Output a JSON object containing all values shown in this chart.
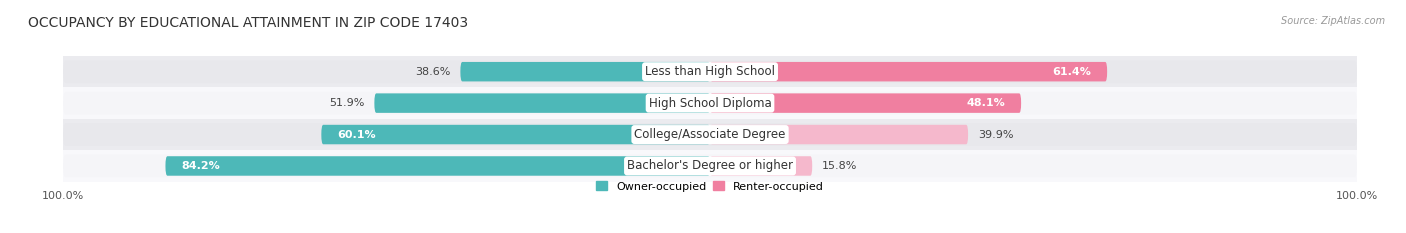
{
  "title": "OCCUPANCY BY EDUCATIONAL ATTAINMENT IN ZIP CODE 17403",
  "source": "Source: ZipAtlas.com",
  "categories": [
    "Less than High School",
    "High School Diploma",
    "College/Associate Degree",
    "Bachelor's Degree or higher"
  ],
  "owner_values": [
    38.6,
    51.9,
    60.1,
    84.2
  ],
  "renter_values": [
    61.4,
    48.1,
    39.9,
    15.8
  ],
  "owner_color": "#4db8b8",
  "renter_color": "#f07fa0",
  "renter_light_color": "#f5b8cc",
  "owner_label_inside_threshold": 55,
  "renter_label_inside_threshold": 40,
  "track_color_odd": "#e8e8ec",
  "track_color_even": "#f5f5f8",
  "row_bg_odd": "#ebebef",
  "row_bg_even": "#f8f8fb",
  "title_fontsize": 10,
  "label_fontsize": 8.5,
  "value_fontsize": 8,
  "legend_fontsize": 8,
  "axis_tick_fontsize": 8
}
